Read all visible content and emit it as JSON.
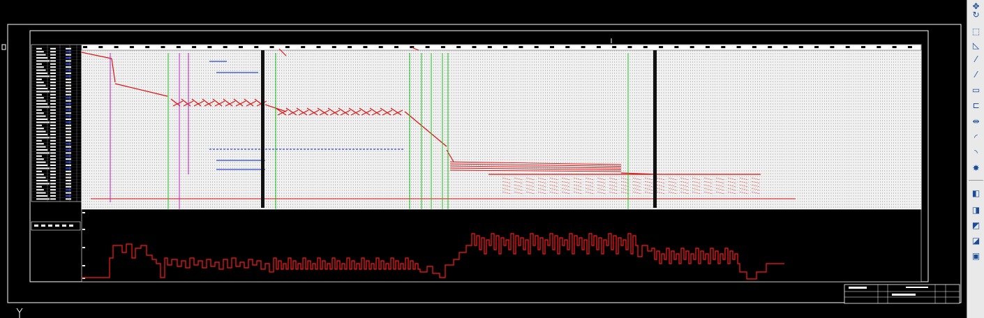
{
  "app": {
    "view": "model-space drawing",
    "axis_y_label": "Y",
    "axis_x_label": "0"
  },
  "toolbar": {
    "tools": [
      {
        "name": "move-icon",
        "glyph": "✥"
      },
      {
        "name": "rotate-icon",
        "glyph": "↻"
      },
      {
        "name": "scale-icon",
        "glyph": "⬚"
      },
      {
        "name": "stretch-icon",
        "glyph": "◺"
      },
      {
        "name": "trim-icon",
        "glyph": "⁄"
      },
      {
        "name": "extend-icon",
        "glyph": "⁄"
      },
      {
        "name": "break-at-point-icon",
        "glyph": "▭"
      },
      {
        "name": "break-icon",
        "glyph": "⊏"
      },
      {
        "name": "join-icon",
        "glyph": "⇹"
      },
      {
        "name": "chamfer-icon",
        "glyph": "◜"
      },
      {
        "name": "fillet-icon",
        "glyph": "◝"
      },
      {
        "name": "explode-icon",
        "glyph": "✸"
      },
      {
        "name": "draworder-front-icon",
        "glyph": "◧"
      },
      {
        "name": "draworder-back-icon",
        "glyph": "◨"
      },
      {
        "name": "draworder-above-icon",
        "glyph": "◩"
      },
      {
        "name": "draworder-under-icon",
        "glyph": "◪"
      },
      {
        "name": "bring-annotations-front-icon",
        "glyph": "▣"
      }
    ]
  },
  "colors": {
    "background": "#000000",
    "frame": "#ffffff",
    "schedule_line": "#e01010",
    "marker_green": "#18c018",
    "marker_magenta": "#c020c0",
    "marker_blue": "#2a4adc",
    "chart_line": "#ff1818"
  }
}
